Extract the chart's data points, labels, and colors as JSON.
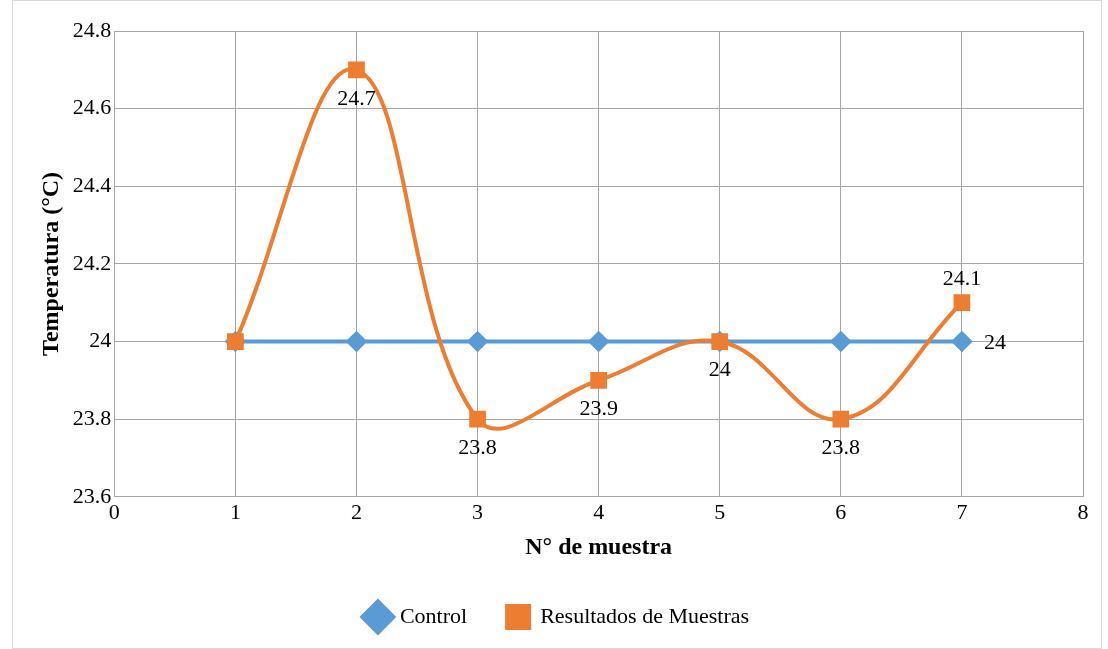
{
  "chart_data": {
    "type": "line",
    "xlabel": "N° de muestra",
    "ylabel": "Temperatura (°C)",
    "x": [
      1,
      2,
      3,
      4,
      5,
      6,
      7
    ],
    "xlim": [
      0,
      8
    ],
    "xticks": [
      0,
      1,
      2,
      3,
      4,
      5,
      6,
      7,
      8
    ],
    "ylim": [
      23.6,
      24.8
    ],
    "yticks": [
      23.6,
      23.8,
      24,
      24.2,
      24.4,
      24.6,
      24.8
    ],
    "grid": true,
    "legend": "bottom",
    "line_style": "solid",
    "series": [
      {
        "name": "Control",
        "color": "#5b9bd5",
        "marker": "diamond",
        "values": [
          24,
          24,
          24,
          24,
          24,
          24,
          24
        ],
        "value_labels": [
          null,
          null,
          null,
          null,
          null,
          null,
          "24"
        ]
      },
      {
        "name": "Resultados de Muestras",
        "color": "#ed7d31",
        "marker": "square",
        "values": [
          24,
          24.7,
          23.8,
          23.9,
          24,
          23.8,
          24.1
        ],
        "value_labels": [
          null,
          "24.7",
          "23.8",
          "23.9",
          "24",
          "23.8",
          "24.1"
        ]
      }
    ]
  }
}
